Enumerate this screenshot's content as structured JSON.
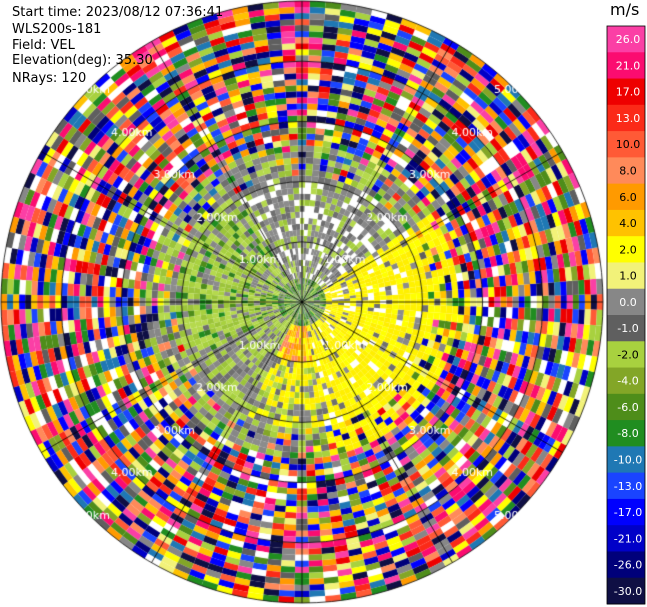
{
  "header": {
    "start_time": "Start time: 2023/08/12 07:36:41",
    "instrument": "WLS200s-181",
    "field": "Field: VEL",
    "elevation": "Elevation(deg): 35.30",
    "nrays": "NRays: 120"
  },
  "chart_data": {
    "type": "heatmap",
    "projection": "polar-ppi",
    "field": "VEL",
    "units": "m/s",
    "nrays": 120,
    "range_rings_km": [
      1.0,
      2.0,
      3.0,
      4.0,
      5.0
    ],
    "range_ring_labels": [
      "1.00km",
      "2.00km",
      "3.00km",
      "4.00km",
      "5.00km"
    ],
    "max_range_km": 5.0,
    "colorbar": {
      "ticks": [
        "26.0",
        "21.0",
        "17.0",
        "13.0",
        "10.0",
        "8.0",
        "6.0",
        "4.0",
        "2.0",
        "1.0",
        "0.0",
        "-1.0",
        "-2.0",
        "-4.0",
        "-6.0",
        "-8.0",
        "-10.0",
        "-13.0",
        "-17.0",
        "-21.0",
        "-26.0",
        "-30.0"
      ],
      "colors": [
        "#fb3fa5",
        "#fb0c70",
        "#ee0000",
        "#fb2a18",
        "#ff5a36",
        "#ff8a5a",
        "#ff9a00",
        "#ffc200",
        "#ffff00",
        "#f2f279",
        "#878787",
        "#5f5f5f",
        "#a8d13f",
        "#83a627",
        "#4e8d1a",
        "#208d20",
        "#1f78b4",
        "#1a44ff",
        "#0000ff",
        "#0000c8",
        "#00007a",
        "#0f0f44"
      ]
    },
    "description_of_field": {
      "near_0_to_1km": "mixed gray, light green, dark green near center",
      "west_and_northwest_1_to_2km": "gray and green (approaching, -1 to -4 m/s)",
      "east_and_south_1_to_2km": "yellow (receding, 2 to 4 m/s)",
      "south_center_0_to_1km": "orange/salmon (receding, 6 to 8 m/s)",
      "beyond_2km": "noise: random multicolour bins"
    }
  }
}
